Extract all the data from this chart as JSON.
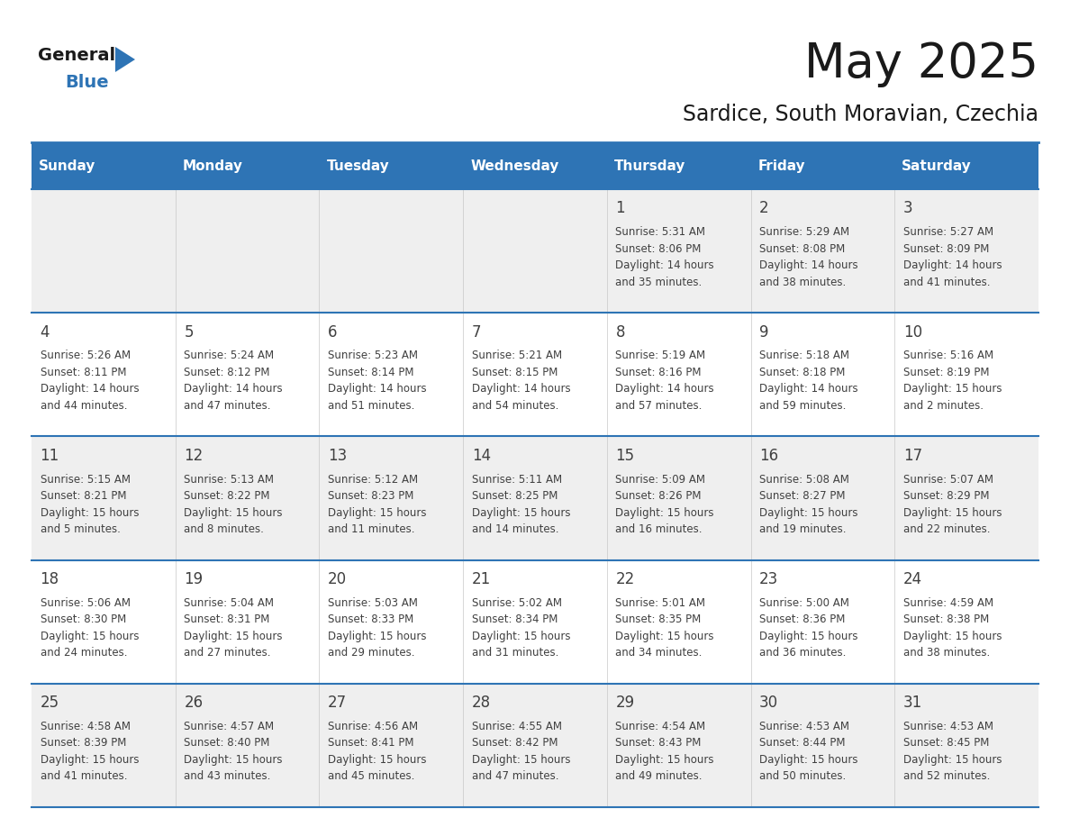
{
  "title": "May 2025",
  "subtitle": "Sardice, South Moravian, Czechia",
  "header_bg": "#2E74B5",
  "header_text_color": "#FFFFFF",
  "header_days": [
    "Sunday",
    "Monday",
    "Tuesday",
    "Wednesday",
    "Thursday",
    "Friday",
    "Saturday"
  ],
  "row_bg_odd": "#EFEFEF",
  "row_bg_even": "#FFFFFF",
  "separator_color": "#2E74B5",
  "text_color": "#404040",
  "day_number_color": "#404040",
  "weeks": [
    {
      "days": [
        {
          "day": "",
          "info": ""
        },
        {
          "day": "",
          "info": ""
        },
        {
          "day": "",
          "info": ""
        },
        {
          "day": "",
          "info": ""
        },
        {
          "day": "1",
          "info": "Sunrise: 5:31 AM\nSunset: 8:06 PM\nDaylight: 14 hours\nand 35 minutes."
        },
        {
          "day": "2",
          "info": "Sunrise: 5:29 AM\nSunset: 8:08 PM\nDaylight: 14 hours\nand 38 minutes."
        },
        {
          "day": "3",
          "info": "Sunrise: 5:27 AM\nSunset: 8:09 PM\nDaylight: 14 hours\nand 41 minutes."
        }
      ]
    },
    {
      "days": [
        {
          "day": "4",
          "info": "Sunrise: 5:26 AM\nSunset: 8:11 PM\nDaylight: 14 hours\nand 44 minutes."
        },
        {
          "day": "5",
          "info": "Sunrise: 5:24 AM\nSunset: 8:12 PM\nDaylight: 14 hours\nand 47 minutes."
        },
        {
          "day": "6",
          "info": "Sunrise: 5:23 AM\nSunset: 8:14 PM\nDaylight: 14 hours\nand 51 minutes."
        },
        {
          "day": "7",
          "info": "Sunrise: 5:21 AM\nSunset: 8:15 PM\nDaylight: 14 hours\nand 54 minutes."
        },
        {
          "day": "8",
          "info": "Sunrise: 5:19 AM\nSunset: 8:16 PM\nDaylight: 14 hours\nand 57 minutes."
        },
        {
          "day": "9",
          "info": "Sunrise: 5:18 AM\nSunset: 8:18 PM\nDaylight: 14 hours\nand 59 minutes."
        },
        {
          "day": "10",
          "info": "Sunrise: 5:16 AM\nSunset: 8:19 PM\nDaylight: 15 hours\nand 2 minutes."
        }
      ]
    },
    {
      "days": [
        {
          "day": "11",
          "info": "Sunrise: 5:15 AM\nSunset: 8:21 PM\nDaylight: 15 hours\nand 5 minutes."
        },
        {
          "day": "12",
          "info": "Sunrise: 5:13 AM\nSunset: 8:22 PM\nDaylight: 15 hours\nand 8 minutes."
        },
        {
          "day": "13",
          "info": "Sunrise: 5:12 AM\nSunset: 8:23 PM\nDaylight: 15 hours\nand 11 minutes."
        },
        {
          "day": "14",
          "info": "Sunrise: 5:11 AM\nSunset: 8:25 PM\nDaylight: 15 hours\nand 14 minutes."
        },
        {
          "day": "15",
          "info": "Sunrise: 5:09 AM\nSunset: 8:26 PM\nDaylight: 15 hours\nand 16 minutes."
        },
        {
          "day": "16",
          "info": "Sunrise: 5:08 AM\nSunset: 8:27 PM\nDaylight: 15 hours\nand 19 minutes."
        },
        {
          "day": "17",
          "info": "Sunrise: 5:07 AM\nSunset: 8:29 PM\nDaylight: 15 hours\nand 22 minutes."
        }
      ]
    },
    {
      "days": [
        {
          "day": "18",
          "info": "Sunrise: 5:06 AM\nSunset: 8:30 PM\nDaylight: 15 hours\nand 24 minutes."
        },
        {
          "day": "19",
          "info": "Sunrise: 5:04 AM\nSunset: 8:31 PM\nDaylight: 15 hours\nand 27 minutes."
        },
        {
          "day": "20",
          "info": "Sunrise: 5:03 AM\nSunset: 8:33 PM\nDaylight: 15 hours\nand 29 minutes."
        },
        {
          "day": "21",
          "info": "Sunrise: 5:02 AM\nSunset: 8:34 PM\nDaylight: 15 hours\nand 31 minutes."
        },
        {
          "day": "22",
          "info": "Sunrise: 5:01 AM\nSunset: 8:35 PM\nDaylight: 15 hours\nand 34 minutes."
        },
        {
          "day": "23",
          "info": "Sunrise: 5:00 AM\nSunset: 8:36 PM\nDaylight: 15 hours\nand 36 minutes."
        },
        {
          "day": "24",
          "info": "Sunrise: 4:59 AM\nSunset: 8:38 PM\nDaylight: 15 hours\nand 38 minutes."
        }
      ]
    },
    {
      "days": [
        {
          "day": "25",
          "info": "Sunrise: 4:58 AM\nSunset: 8:39 PM\nDaylight: 15 hours\nand 41 minutes."
        },
        {
          "day": "26",
          "info": "Sunrise: 4:57 AM\nSunset: 8:40 PM\nDaylight: 15 hours\nand 43 minutes."
        },
        {
          "day": "27",
          "info": "Sunrise: 4:56 AM\nSunset: 8:41 PM\nDaylight: 15 hours\nand 45 minutes."
        },
        {
          "day": "28",
          "info": "Sunrise: 4:55 AM\nSunset: 8:42 PM\nDaylight: 15 hours\nand 47 minutes."
        },
        {
          "day": "29",
          "info": "Sunrise: 4:54 AM\nSunset: 8:43 PM\nDaylight: 15 hours\nand 49 minutes."
        },
        {
          "day": "30",
          "info": "Sunrise: 4:53 AM\nSunset: 8:44 PM\nDaylight: 15 hours\nand 50 minutes."
        },
        {
          "day": "31",
          "info": "Sunrise: 4:53 AM\nSunset: 8:45 PM\nDaylight: 15 hours\nand 52 minutes."
        }
      ]
    }
  ],
  "logo_general_color": "#1a1a1a",
  "logo_blue_color": "#2E74B5",
  "logo_triangle_color": "#2E74B5",
  "title_fontsize": 38,
  "subtitle_fontsize": 17,
  "header_fontsize": 11,
  "day_num_fontsize": 12,
  "info_fontsize": 8.5
}
